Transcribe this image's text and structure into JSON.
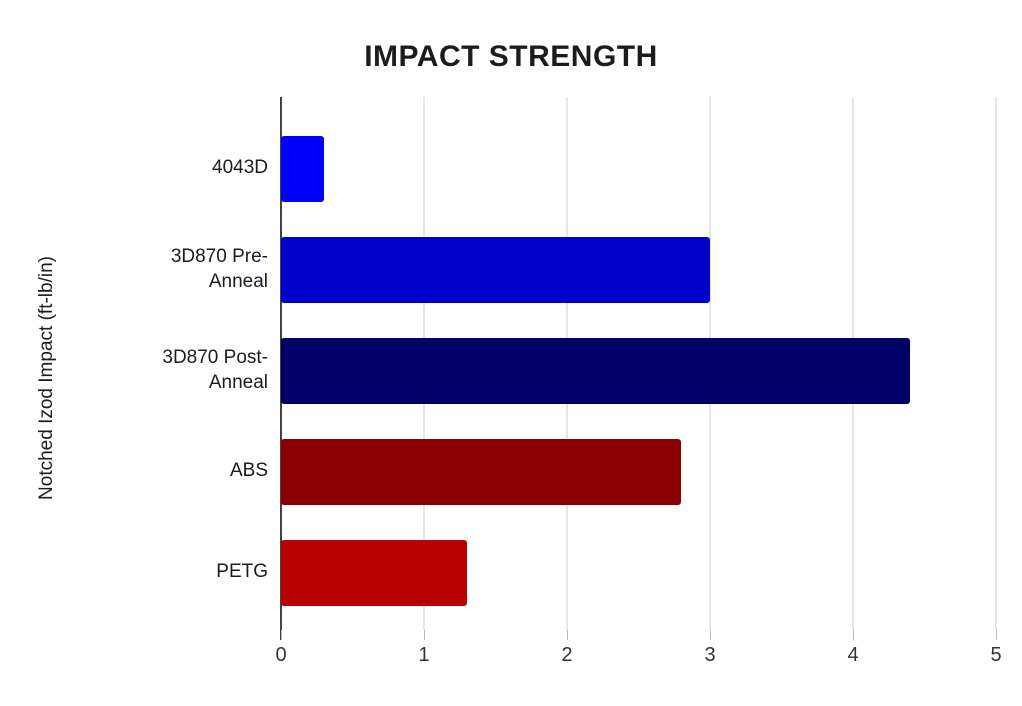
{
  "page": {
    "background": "#ffffff"
  },
  "chart_data": {
    "type": "bar",
    "orientation": "horizontal",
    "title": "IMPACT STRENGTH",
    "ylabel": "Notched Izod Impact (ft-lb/in)",
    "xlabel": "",
    "categories": [
      "4043D",
      "3D870 Pre-Anneal",
      "3D870 Post-Anneal",
      "ABS",
      "PETG"
    ],
    "values": [
      0.3,
      3,
      4.4,
      2.8,
      1.3
    ],
    "bar_colors": [
      "#0000ff",
      "#0000cc",
      "#000066",
      "#8b0000",
      "#b80000"
    ],
    "xlim": [
      0,
      5
    ],
    "x_ticks": [
      0,
      1,
      2,
      3,
      4,
      5
    ],
    "grid": "vertical",
    "gridline_color": "#cccccc",
    "axis_line_color": "#424242",
    "tick_label_color": "#333333",
    "legend": "none"
  }
}
